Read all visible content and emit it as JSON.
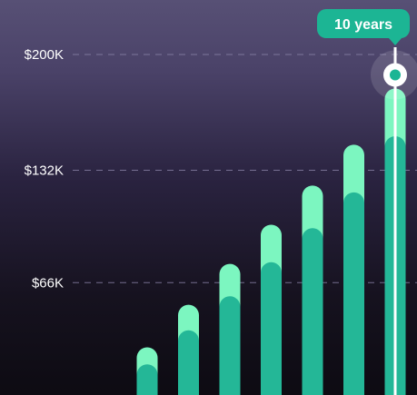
{
  "chart_data": {
    "type": "bar",
    "stacked": true,
    "categories": [
      "",
      "",
      "",
      "",
      "",
      "",
      ""
    ],
    "series": [
      {
        "values": [
          18,
          38,
          58,
          78,
          98,
          119,
          152
        ]
      },
      {
        "values": [
          10,
          15,
          19,
          22,
          25,
          28,
          28
        ]
      }
    ],
    "y_ticks": [
      {
        "value": 66,
        "label": "$66K"
      },
      {
        "value": 132,
        "label": "$132K"
      },
      {
        "value": 200,
        "label": "$200K"
      }
    ],
    "ylim": [
      0,
      200
    ],
    "grid": true,
    "highlight": {
      "index": 6,
      "label": "10 years"
    },
    "colors": {
      "base": "#24b797",
      "top": "#7cf6c0",
      "grid": "#8a83a8",
      "callout": "#1cb594",
      "marker_ring": "#ffffff",
      "marker_dot": "#1cb594"
    }
  }
}
